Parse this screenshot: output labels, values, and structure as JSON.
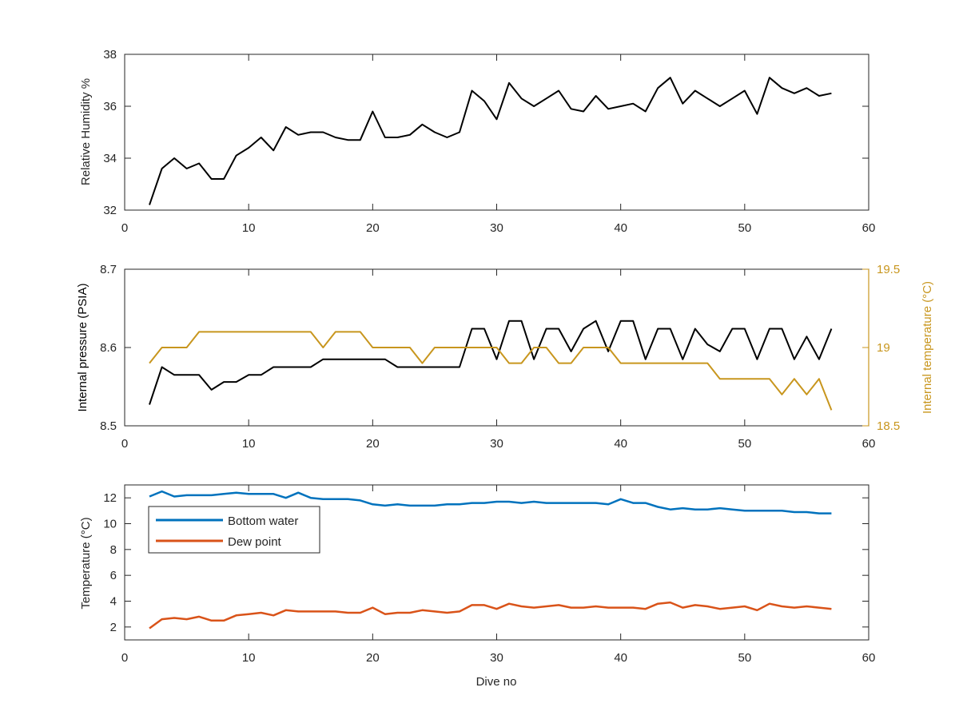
{
  "chart_data": [
    {
      "type": "line",
      "xlabel": "",
      "ylabel": "Relative Humidity %",
      "xlim": [
        0,
        60
      ],
      "ylim": [
        32,
        38
      ],
      "xticks": [
        "0",
        "10",
        "20",
        "30",
        "40",
        "50",
        "60"
      ],
      "yticks": [
        "32",
        "34",
        "36",
        "38"
      ],
      "grid": false,
      "series": [
        {
          "color": "#000000",
          "x": [
            2,
            3,
            4,
            5,
            6,
            7,
            8,
            9,
            10,
            11,
            12,
            13,
            14,
            15,
            16,
            17,
            18,
            19,
            20,
            21,
            22,
            23,
            24,
            25,
            26,
            27,
            28,
            29,
            30,
            31,
            32,
            33,
            34,
            35,
            36,
            37,
            38,
            39,
            40,
            41,
            42,
            43,
            44,
            45,
            46,
            47,
            48,
            49,
            50,
            51,
            52,
            53,
            54,
            55,
            56,
            57
          ],
          "values": [
            32.2,
            33.6,
            34.0,
            33.6,
            33.8,
            33.2,
            33.2,
            34.1,
            34.4,
            34.8,
            34.3,
            35.2,
            34.9,
            35.0,
            35.0,
            34.8,
            34.7,
            34.7,
            35.8,
            34.8,
            34.8,
            34.9,
            35.3,
            35.0,
            34.8,
            35.0,
            36.6,
            36.2,
            35.5,
            36.9,
            36.3,
            36.0,
            36.3,
            36.6,
            35.9,
            35.8,
            36.4,
            35.9,
            36.0,
            36.1,
            35.8,
            36.7,
            37.1,
            36.1,
            36.6,
            36.3,
            36.0,
            36.3,
            36.6,
            35.7,
            37.1,
            36.7,
            36.5,
            36.7,
            36.4,
            36.5
          ]
        }
      ]
    },
    {
      "type": "line",
      "xlabel": "",
      "ylabel": "Internal pressure (PSIA)",
      "y2label": "Internal temperature (°C)",
      "xlim": [
        0,
        60
      ],
      "ylim": [
        8.5,
        8.7
      ],
      "y2lim": [
        18.5,
        19.5
      ],
      "xticks": [
        "0",
        "10",
        "20",
        "30",
        "40",
        "50",
        "60"
      ],
      "yticks": [
        "8.5",
        "8.6",
        "8.7"
      ],
      "y2ticks": [
        "18.5",
        "19",
        "19.5"
      ],
      "grid": false,
      "series": [
        {
          "axis": "left",
          "color": "#000000",
          "x": [
            2,
            3,
            4,
            5,
            6,
            7,
            8,
            9,
            10,
            11,
            12,
            13,
            14,
            15,
            16,
            17,
            18,
            19,
            20,
            21,
            22,
            23,
            24,
            25,
            26,
            27,
            28,
            29,
            30,
            31,
            32,
            33,
            34,
            35,
            36,
            37,
            38,
            39,
            40,
            41,
            42,
            43,
            44,
            45,
            46,
            47,
            48,
            49,
            50,
            51,
            52,
            53,
            54,
            55,
            56,
            57
          ],
          "values": [
            8.527,
            8.575,
            8.565,
            8.565,
            8.565,
            8.546,
            8.556,
            8.556,
            8.565,
            8.565,
            8.575,
            8.575,
            8.575,
            8.575,
            8.585,
            8.585,
            8.585,
            8.585,
            8.585,
            8.585,
            8.575,
            8.575,
            8.575,
            8.575,
            8.575,
            8.575,
            8.624,
            8.624,
            8.585,
            8.634,
            8.634,
            8.585,
            8.624,
            8.624,
            8.595,
            8.624,
            8.634,
            8.595,
            8.634,
            8.634,
            8.585,
            8.624,
            8.624,
            8.585,
            8.624,
            8.604,
            8.595,
            8.624,
            8.624,
            8.585,
            8.624,
            8.624,
            8.585,
            8.614,
            8.585,
            8.624
          ]
        },
        {
          "axis": "right",
          "color": "#C8961E",
          "x": [
            2,
            3,
            4,
            5,
            6,
            7,
            8,
            9,
            10,
            11,
            12,
            13,
            14,
            15,
            16,
            17,
            18,
            19,
            20,
            21,
            22,
            23,
            24,
            25,
            26,
            27,
            28,
            29,
            30,
            31,
            32,
            33,
            34,
            35,
            36,
            37,
            38,
            39,
            40,
            41,
            42,
            43,
            44,
            45,
            46,
            47,
            48,
            49,
            50,
            51,
            52,
            53,
            54,
            55,
            56,
            57
          ],
          "values": [
            18.9,
            19.0,
            19.0,
            19.0,
            19.1,
            19.1,
            19.1,
            19.1,
            19.1,
            19.1,
            19.1,
            19.1,
            19.1,
            19.1,
            19.0,
            19.1,
            19.1,
            19.1,
            19.0,
            19.0,
            19.0,
            19.0,
            18.9,
            19.0,
            19.0,
            19.0,
            19.0,
            19.0,
            19.0,
            18.9,
            18.9,
            19.0,
            19.0,
            18.9,
            18.9,
            19.0,
            19.0,
            19.0,
            18.9,
            18.9,
            18.9,
            18.9,
            18.9,
            18.9,
            18.9,
            18.9,
            18.8,
            18.8,
            18.8,
            18.8,
            18.8,
            18.7,
            18.8,
            18.7,
            18.8,
            18.6
          ]
        }
      ]
    },
    {
      "type": "line",
      "xlabel": "Dive no",
      "ylabel": "Temperature (°C)",
      "xlim": [
        0,
        60
      ],
      "ylim": [
        1,
        13
      ],
      "xticks": [
        "0",
        "10",
        "20",
        "30",
        "40",
        "50",
        "60"
      ],
      "yticks": [
        "2",
        "4",
        "6",
        "8",
        "10",
        "12"
      ],
      "grid": false,
      "legend": "top-left",
      "series": [
        {
          "name": "Bottom water",
          "color": "#0072BD",
          "x": [
            2,
            3,
            4,
            5,
            6,
            7,
            8,
            9,
            10,
            11,
            12,
            13,
            14,
            15,
            16,
            17,
            18,
            19,
            20,
            21,
            22,
            23,
            24,
            25,
            26,
            27,
            28,
            29,
            30,
            31,
            32,
            33,
            34,
            35,
            36,
            37,
            38,
            39,
            40,
            41,
            42,
            43,
            44,
            45,
            46,
            47,
            48,
            49,
            50,
            51,
            52,
            53,
            54,
            55,
            56,
            57
          ],
          "values": [
            12.1,
            12.5,
            12.1,
            12.2,
            12.2,
            12.2,
            12.3,
            12.4,
            12.3,
            12.3,
            12.3,
            12.0,
            12.4,
            12.0,
            11.9,
            11.9,
            11.9,
            11.8,
            11.5,
            11.4,
            11.5,
            11.4,
            11.4,
            11.4,
            11.5,
            11.5,
            11.6,
            11.6,
            11.7,
            11.7,
            11.6,
            11.7,
            11.6,
            11.6,
            11.6,
            11.6,
            11.6,
            11.5,
            11.9,
            11.6,
            11.6,
            11.3,
            11.1,
            11.2,
            11.1,
            11.1,
            11.2,
            11.1,
            11.0,
            11.0,
            11.0,
            11.0,
            10.9,
            10.9,
            10.8,
            10.8
          ]
        },
        {
          "name": "Dew point",
          "color": "#D95319",
          "x": [
            2,
            3,
            4,
            5,
            6,
            7,
            8,
            9,
            10,
            11,
            12,
            13,
            14,
            15,
            16,
            17,
            18,
            19,
            20,
            21,
            22,
            23,
            24,
            25,
            26,
            27,
            28,
            29,
            30,
            31,
            32,
            33,
            34,
            35,
            36,
            37,
            38,
            39,
            40,
            41,
            42,
            43,
            44,
            45,
            46,
            47,
            48,
            49,
            50,
            51,
            52,
            53,
            54,
            55,
            56,
            57
          ],
          "values": [
            1.9,
            2.6,
            2.7,
            2.6,
            2.8,
            2.5,
            2.5,
            2.9,
            3.0,
            3.1,
            2.9,
            3.3,
            3.2,
            3.2,
            3.2,
            3.2,
            3.1,
            3.1,
            3.5,
            3.0,
            3.1,
            3.1,
            3.3,
            3.2,
            3.1,
            3.2,
            3.7,
            3.7,
            3.4,
            3.8,
            3.6,
            3.5,
            3.6,
            3.7,
            3.5,
            3.5,
            3.6,
            3.5,
            3.5,
            3.5,
            3.4,
            3.8,
            3.9,
            3.5,
            3.7,
            3.6,
            3.4,
            3.5,
            3.6,
            3.3,
            3.8,
            3.6,
            3.5,
            3.6,
            3.5,
            3.4
          ]
        }
      ]
    }
  ]
}
